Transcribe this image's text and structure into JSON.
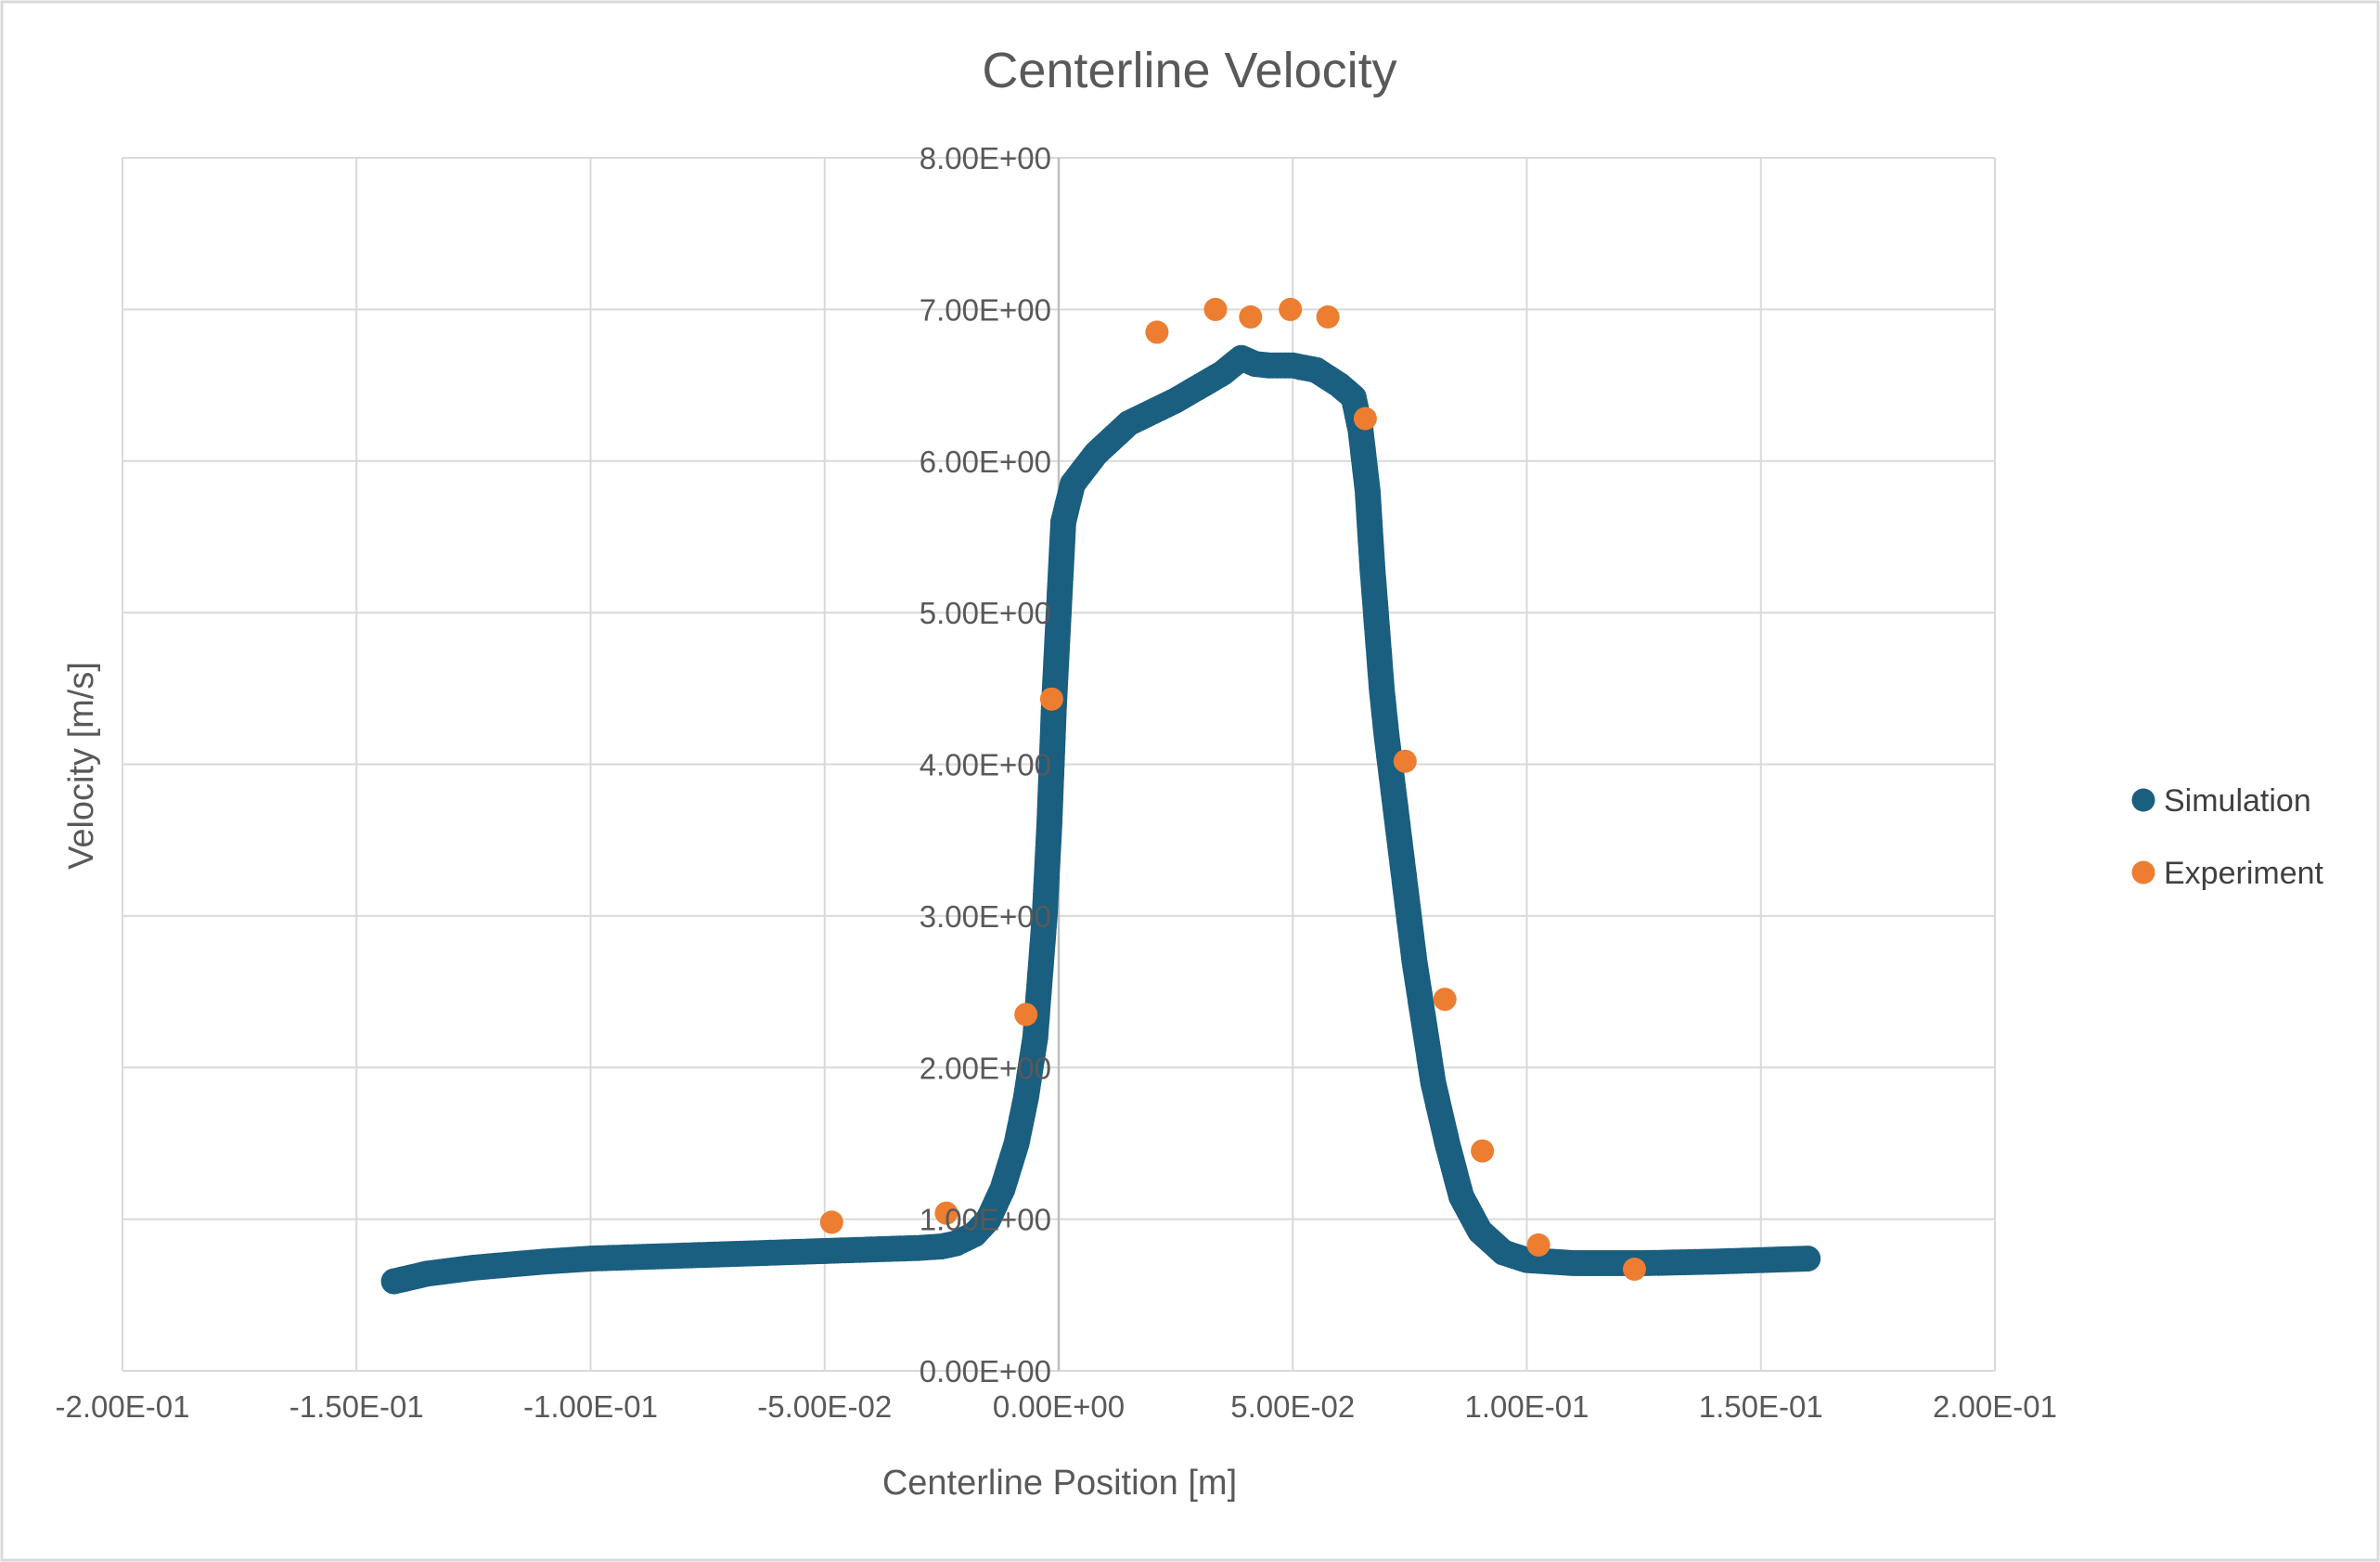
{
  "chart_data": {
    "type": "scatter",
    "title": "Centerline Velocity",
    "xlabel": "Centerline Position [m]",
    "ylabel": "Velocity [m/s]",
    "xlim": [
      -0.2,
      0.2
    ],
    "ylim": [
      0,
      8
    ],
    "x_ticks": [
      {
        "value": -0.2,
        "label": "-2.00E-01"
      },
      {
        "value": -0.15,
        "label": "-1.50E-01"
      },
      {
        "value": -0.1,
        "label": "-1.00E-01"
      },
      {
        "value": -0.05,
        "label": "-5.00E-02"
      },
      {
        "value": 0,
        "label": "0.00E+00"
      },
      {
        "value": 0.05,
        "label": "5.00E-02"
      },
      {
        "value": 0.1,
        "label": "1.00E-01"
      },
      {
        "value": 0.15,
        "label": "1.50E-01"
      },
      {
        "value": 0.2,
        "label": "2.00E-01"
      }
    ],
    "y_ticks": [
      {
        "value": 0,
        "label": "0.00E+00"
      },
      {
        "value": 1,
        "label": "1.00E+00"
      },
      {
        "value": 2,
        "label": "2.00E+00"
      },
      {
        "value": 3,
        "label": "3.00E+00"
      },
      {
        "value": 4,
        "label": "4.00E+00"
      },
      {
        "value": 5,
        "label": "5.00E+00"
      },
      {
        "value": 6,
        "label": "6.00E+00"
      },
      {
        "value": 7,
        "label": "7.00E+00"
      },
      {
        "value": 8,
        "label": "8.00E+00"
      }
    ],
    "grid": true,
    "legend_position": "right",
    "series": [
      {
        "name": "Simulation",
        "color": "#1a5e80",
        "marker": "dense-circles",
        "points": [
          [
            -0.142,
            0.59
          ],
          [
            -0.135,
            0.64
          ],
          [
            -0.125,
            0.68
          ],
          [
            -0.11,
            0.72
          ],
          [
            -0.1,
            0.74
          ],
          [
            -0.08,
            0.76
          ],
          [
            -0.06,
            0.78
          ],
          [
            -0.04,
            0.8
          ],
          [
            -0.03,
            0.81
          ],
          [
            -0.025,
            0.82
          ],
          [
            -0.022,
            0.84
          ],
          [
            -0.018,
            0.9
          ],
          [
            -0.015,
            1.0
          ],
          [
            -0.012,
            1.2
          ],
          [
            -0.009,
            1.5
          ],
          [
            -0.007,
            1.8
          ],
          [
            -0.005,
            2.2
          ],
          [
            -0.004,
            2.6
          ],
          [
            -0.003,
            3.0
          ],
          [
            -0.002,
            3.6
          ],
          [
            -0.001,
            4.4
          ],
          [
            0.0,
            5.0
          ],
          [
            0.001,
            5.6
          ],
          [
            0.003,
            5.85
          ],
          [
            0.008,
            6.05
          ],
          [
            0.015,
            6.25
          ],
          [
            0.025,
            6.4
          ],
          [
            0.035,
            6.58
          ],
          [
            0.039,
            6.68
          ],
          [
            0.042,
            6.64
          ],
          [
            0.045,
            6.63
          ],
          [
            0.05,
            6.63
          ],
          [
            0.055,
            6.6
          ],
          [
            0.06,
            6.5
          ],
          [
            0.063,
            6.42
          ],
          [
            0.0645,
            6.2
          ],
          [
            0.066,
            5.8
          ],
          [
            0.067,
            5.3
          ],
          [
            0.068,
            4.9
          ],
          [
            0.069,
            4.5
          ],
          [
            0.07,
            4.2
          ],
          [
            0.072,
            3.7
          ],
          [
            0.074,
            3.2
          ],
          [
            0.076,
            2.7
          ],
          [
            0.078,
            2.3
          ],
          [
            0.08,
            1.9
          ],
          [
            0.083,
            1.5
          ],
          [
            0.086,
            1.15
          ],
          [
            0.09,
            0.92
          ],
          [
            0.095,
            0.78
          ],
          [
            0.1,
            0.73
          ],
          [
            0.11,
            0.71
          ],
          [
            0.125,
            0.71
          ],
          [
            0.14,
            0.72
          ],
          [
            0.16,
            0.74
          ]
        ]
      },
      {
        "name": "Experiment",
        "color": "#ed7d31",
        "marker": "circle",
        "points": [
          [
            -0.0485,
            0.98
          ],
          [
            -0.024,
            1.04
          ],
          [
            -0.007,
            2.35
          ],
          [
            -0.0015,
            4.43
          ],
          [
            0.021,
            6.85
          ],
          [
            0.0335,
            7.0
          ],
          [
            0.041,
            6.95
          ],
          [
            0.0495,
            7.0
          ],
          [
            0.0575,
            6.95
          ],
          [
            0.0655,
            6.28
          ],
          [
            0.074,
            4.02
          ],
          [
            0.0825,
            2.45
          ],
          [
            0.0905,
            1.45
          ],
          [
            0.1025,
            0.83
          ],
          [
            0.123,
            0.67
          ]
        ]
      }
    ]
  }
}
